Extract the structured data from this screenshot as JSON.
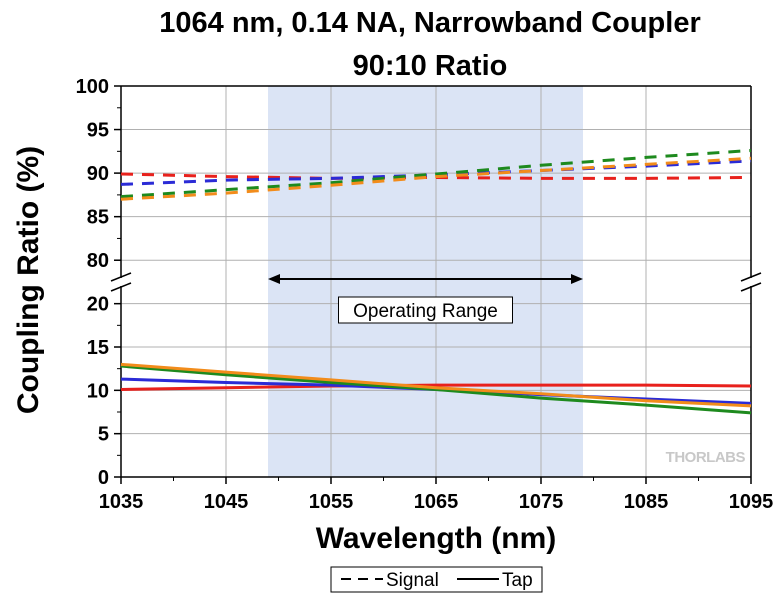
{
  "chart_data": {
    "type": "line",
    "title": [
      "1064 nm, 0.14 NA, Narrowband Coupler",
      "90:10 Ratio"
    ],
    "xlabel": "Wavelength (nm)",
    "ylabel": "Coupling Ratio (%)",
    "xlim": [
      1035,
      1095
    ],
    "xticks": [
      1035,
      1045,
      1055,
      1065,
      1075,
      1085,
      1095
    ],
    "axis_break": true,
    "upper_panel": {
      "ylim": [
        77.5,
        100
      ],
      "yticks": [
        80,
        85,
        90,
        95,
        100
      ]
    },
    "lower_panel": {
      "ylim": [
        0,
        22.5
      ],
      "yticks": [
        0,
        5,
        10,
        15,
        20
      ]
    },
    "grid": true,
    "shaded_region": {
      "x": [
        1049,
        1079
      ],
      "color": "#dbe4f5"
    },
    "annotation": {
      "text": "Operating Range",
      "x": [
        1049,
        1079
      ]
    },
    "legend": {
      "position": "bottom-center",
      "entries": [
        {
          "label": "Signal",
          "style": "dashed"
        },
        {
          "label": "Tap",
          "style": "solid"
        }
      ]
    },
    "logo": "THORLABS",
    "x": [
      1035,
      1045,
      1055,
      1065,
      1075,
      1085,
      1095
    ],
    "series": [
      {
        "style": "dashed",
        "color": "#e8211c",
        "values": [
          89.9,
          89.6,
          89.4,
          89.5,
          89.4,
          89.4,
          89.5
        ]
      },
      {
        "style": "dashed",
        "color": "#2b2bd6",
        "values": [
          88.7,
          89.2,
          89.4,
          89.8,
          90.3,
          90.8,
          91.4
        ]
      },
      {
        "style": "dashed",
        "color": "#1e8a1e",
        "values": [
          87.3,
          88.1,
          88.9,
          89.9,
          90.9,
          91.8,
          92.6
        ]
      },
      {
        "style": "dashed",
        "color": "#f28c1b",
        "values": [
          87.0,
          87.7,
          88.6,
          89.6,
          90.3,
          91.0,
          91.7
        ]
      },
      {
        "style": "solid",
        "color": "#e8211c",
        "values": [
          10.1,
          10.3,
          10.5,
          10.6,
          10.6,
          10.6,
          10.5
        ]
      },
      {
        "style": "solid",
        "color": "#2b2bd6",
        "values": [
          11.3,
          10.9,
          10.6,
          10.1,
          9.5,
          9.0,
          8.5
        ]
      },
      {
        "style": "solid",
        "color": "#1e8a1e",
        "values": [
          12.8,
          11.8,
          10.9,
          10.1,
          9.1,
          8.3,
          7.4
        ]
      },
      {
        "style": "solid",
        "color": "#f28c1b",
        "values": [
          13.0,
          12.1,
          11.2,
          10.3,
          9.6,
          8.8,
          8.2
        ]
      }
    ]
  }
}
